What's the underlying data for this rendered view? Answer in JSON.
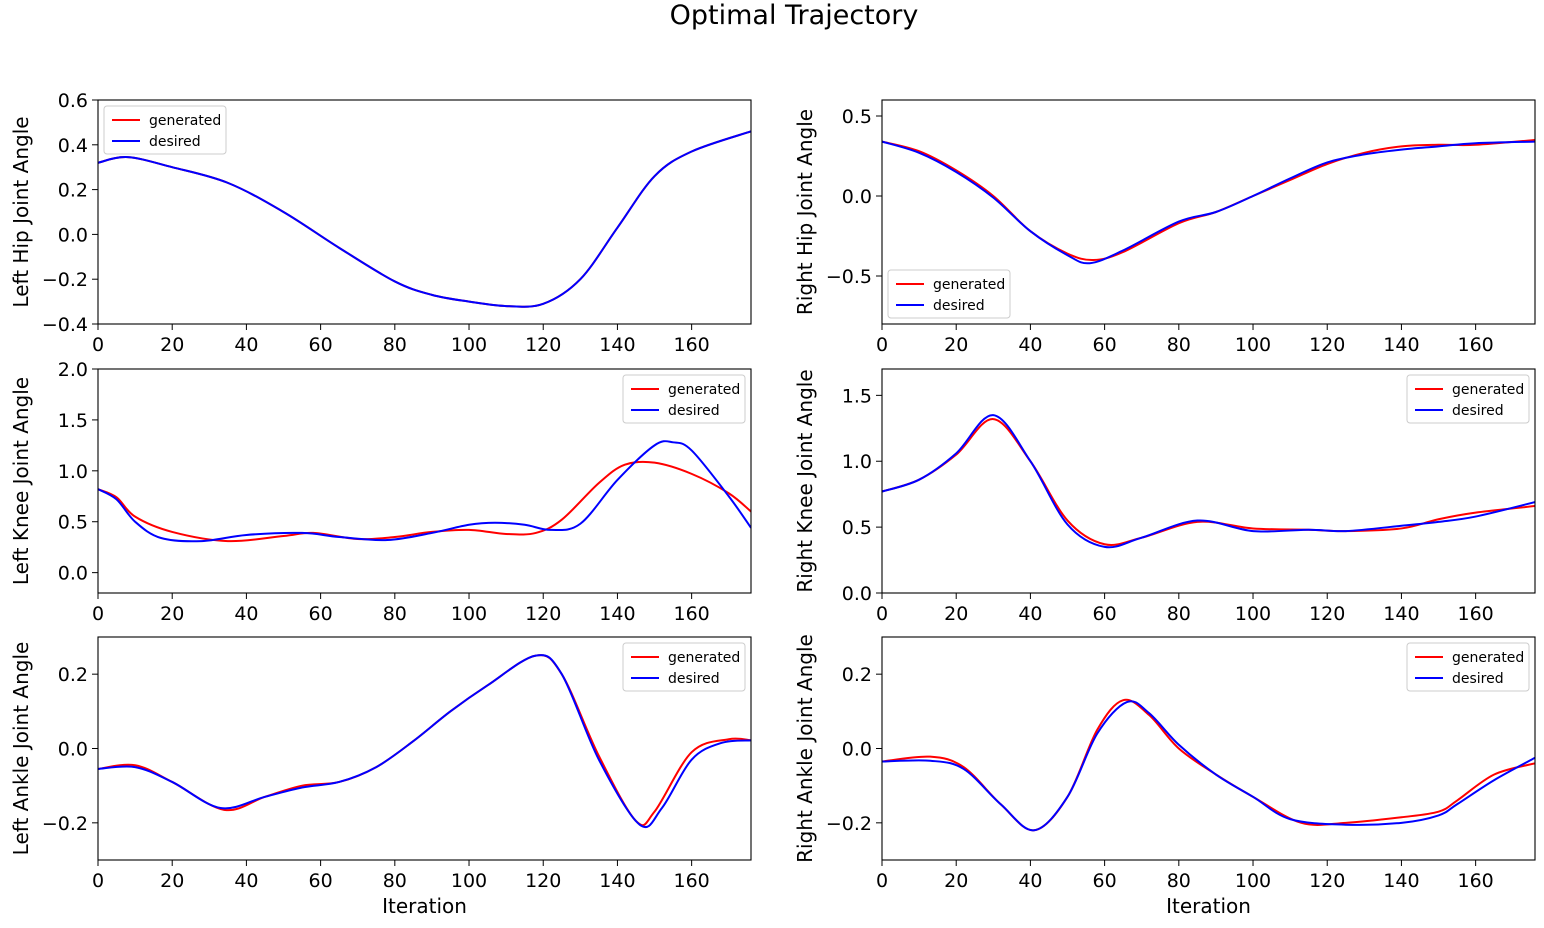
{
  "title": "Optimal Trajectory",
  "colors": {
    "generated": "#ff0000",
    "desired": "#0000ff"
  },
  "chart_data": [
    {
      "type": "line",
      "ylabel": "Left Hip Joint Angle",
      "xlabel": "",
      "xlim": [
        0,
        176
      ],
      "ylim": [
        -0.4,
        0.6
      ],
      "xticks": [
        0,
        20,
        40,
        60,
        80,
        100,
        120,
        140,
        160
      ],
      "xtick_labels": [
        "0",
        "20",
        "40",
        "60",
        "80",
        "100",
        "120",
        "140",
        "160"
      ],
      "yticks": [
        -0.4,
        -0.2,
        0.0,
        0.2,
        0.4,
        0.6
      ],
      "ytick_labels": [
        "−0.4",
        "−0.2",
        "0.0",
        "0.2",
        "0.4",
        "0.6"
      ],
      "legend": "upper-left",
      "series": [
        {
          "name": "generated",
          "x": [
            0,
            8,
            20,
            35,
            50,
            65,
            80,
            90,
            100,
            110,
            120,
            130,
            140,
            150,
            160,
            176
          ],
          "y": [
            0.32,
            0.345,
            0.3,
            0.23,
            0.1,
            -0.06,
            -0.21,
            -0.27,
            -0.3,
            -0.32,
            -0.31,
            -0.2,
            0.03,
            0.26,
            0.37,
            0.46
          ]
        },
        {
          "name": "desired",
          "x": [
            0,
            8,
            20,
            35,
            50,
            65,
            80,
            90,
            100,
            110,
            120,
            130,
            140,
            150,
            160,
            176
          ],
          "y": [
            0.32,
            0.345,
            0.3,
            0.23,
            0.1,
            -0.06,
            -0.21,
            -0.27,
            -0.3,
            -0.32,
            -0.31,
            -0.2,
            0.03,
            0.26,
            0.37,
            0.46
          ]
        }
      ]
    },
    {
      "type": "line",
      "ylabel": "Right Hip Joint Angle",
      "xlabel": "",
      "xlim": [
        0,
        176
      ],
      "ylim": [
        -0.8,
        0.6
      ],
      "xticks": [
        0,
        20,
        40,
        60,
        80,
        100,
        120,
        140,
        160
      ],
      "xtick_labels": [
        "0",
        "20",
        "40",
        "60",
        "80",
        "100",
        "120",
        "140",
        "160"
      ],
      "yticks": [
        -0.5,
        0.0,
        0.5
      ],
      "ytick_labels": [
        "−0.5",
        "0.0",
        "0.5"
      ],
      "legend": "lower-left",
      "series": [
        {
          "name": "generated",
          "x": [
            0,
            10,
            20,
            30,
            40,
            50,
            57,
            65,
            80,
            90,
            100,
            110,
            120,
            130,
            140,
            150,
            160,
            176
          ],
          "y": [
            0.34,
            0.28,
            0.16,
            0.0,
            -0.22,
            -0.36,
            -0.4,
            -0.35,
            -0.17,
            -0.1,
            0.0,
            0.1,
            0.2,
            0.27,
            0.31,
            0.32,
            0.32,
            0.35
          ]
        },
        {
          "name": "desired",
          "x": [
            0,
            10,
            20,
            30,
            40,
            50,
            56,
            65,
            80,
            90,
            100,
            110,
            120,
            130,
            140,
            150,
            160,
            176
          ],
          "y": [
            0.34,
            0.27,
            0.15,
            -0.01,
            -0.22,
            -0.37,
            -0.42,
            -0.34,
            -0.16,
            -0.1,
            0.0,
            0.11,
            0.21,
            0.26,
            0.29,
            0.31,
            0.33,
            0.34
          ]
        }
      ]
    },
    {
      "type": "line",
      "ylabel": "Left Knee Joint Angle",
      "xlabel": "",
      "xlim": [
        0,
        176
      ],
      "ylim": [
        -0.2,
        2.0
      ],
      "xticks": [
        0,
        20,
        40,
        60,
        80,
        100,
        120,
        140,
        160
      ],
      "xtick_labels": [
        "0",
        "20",
        "40",
        "60",
        "80",
        "100",
        "120",
        "140",
        "160"
      ],
      "yticks": [
        0.0,
        0.5,
        1.0,
        1.5,
        2.0
      ],
      "ytick_labels": [
        "0.0",
        "0.5",
        "1.0",
        "1.5",
        "2.0"
      ],
      "legend": "upper-right",
      "series": [
        {
          "name": "generated",
          "x": [
            0,
            5,
            10,
            20,
            35,
            50,
            58,
            70,
            80,
            90,
            100,
            110,
            118,
            125,
            135,
            142,
            150,
            160,
            170,
            176
          ],
          "y": [
            0.82,
            0.74,
            0.55,
            0.4,
            0.31,
            0.36,
            0.39,
            0.33,
            0.35,
            0.4,
            0.42,
            0.38,
            0.39,
            0.52,
            0.88,
            1.06,
            1.08,
            0.97,
            0.78,
            0.6
          ]
        },
        {
          "name": "desired",
          "x": [
            0,
            5,
            10,
            17,
            28,
            40,
            55,
            65,
            78,
            90,
            100,
            107,
            115,
            122,
            130,
            140,
            150,
            155,
            160,
            170,
            176
          ],
          "y": [
            0.82,
            0.72,
            0.5,
            0.34,
            0.31,
            0.37,
            0.39,
            0.35,
            0.32,
            0.39,
            0.47,
            0.49,
            0.47,
            0.42,
            0.48,
            0.91,
            1.25,
            1.28,
            1.2,
            0.75,
            0.44
          ]
        }
      ]
    },
    {
      "type": "line",
      "ylabel": "Right Knee Joint Angle",
      "xlabel": "",
      "xlim": [
        0,
        176
      ],
      "ylim": [
        0.0,
        1.7
      ],
      "xticks": [
        0,
        20,
        40,
        60,
        80,
        100,
        120,
        140,
        160
      ],
      "xtick_labels": [
        "0",
        "20",
        "40",
        "60",
        "80",
        "100",
        "120",
        "140",
        "160"
      ],
      "yticks": [
        0.0,
        0.5,
        1.0,
        1.5
      ],
      "ytick_labels": [
        "0.0",
        "0.5",
        "1.0",
        "1.5"
      ],
      "legend": "upper-right",
      "series": [
        {
          "name": "generated",
          "x": [
            0,
            10,
            20,
            30,
            40,
            50,
            60,
            70,
            85,
            100,
            115,
            125,
            140,
            150,
            160,
            176
          ],
          "y": [
            0.77,
            0.86,
            1.05,
            1.32,
            1.0,
            0.55,
            0.37,
            0.42,
            0.54,
            0.49,
            0.48,
            0.47,
            0.49,
            0.56,
            0.61,
            0.66
          ]
        },
        {
          "name": "desired",
          "x": [
            0,
            10,
            20,
            30,
            40,
            50,
            60,
            70,
            85,
            100,
            115,
            125,
            140,
            150,
            160,
            176
          ],
          "y": [
            0.77,
            0.86,
            1.06,
            1.35,
            1.0,
            0.52,
            0.35,
            0.42,
            0.55,
            0.47,
            0.48,
            0.47,
            0.51,
            0.54,
            0.58,
            0.69
          ]
        }
      ]
    },
    {
      "type": "line",
      "ylabel": "Left Ankle Joint Angle",
      "xlabel": "Iteration",
      "xlim": [
        0,
        176
      ],
      "ylim": [
        -0.3,
        0.3
      ],
      "xticks": [
        0,
        20,
        40,
        60,
        80,
        100,
        120,
        140,
        160
      ],
      "xtick_labels": [
        "0",
        "20",
        "40",
        "60",
        "80",
        "100",
        "120",
        "140",
        "160"
      ],
      "yticks": [
        -0.2,
        0.0,
        0.2
      ],
      "ytick_labels": [
        "−0.2",
        "0.0",
        "0.2"
      ],
      "legend": "upper-right",
      "series": [
        {
          "name": "generated",
          "x": [
            0,
            10,
            20,
            34,
            45,
            55,
            65,
            75,
            85,
            95,
            105,
            118,
            125,
            135,
            145,
            150,
            160,
            170,
            176
          ],
          "y": [
            -0.055,
            -0.045,
            -0.09,
            -0.165,
            -0.13,
            -0.1,
            -0.09,
            -0.05,
            0.02,
            0.1,
            0.17,
            0.25,
            0.2,
            -0.02,
            -0.195,
            -0.17,
            -0.01,
            0.025,
            0.022
          ]
        },
        {
          "name": "desired",
          "x": [
            0,
            10,
            20,
            33,
            45,
            55,
            65,
            75,
            85,
            95,
            105,
            118,
            125,
            135,
            146,
            152,
            160,
            168,
            176
          ],
          "y": [
            -0.055,
            -0.05,
            -0.09,
            -0.16,
            -0.13,
            -0.105,
            -0.09,
            -0.05,
            0.02,
            0.1,
            0.17,
            0.25,
            0.2,
            -0.03,
            -0.205,
            -0.16,
            -0.03,
            0.015,
            0.022
          ]
        }
      ]
    },
    {
      "type": "line",
      "ylabel": "Right Ankle Joint Angle",
      "xlabel": "Iteration",
      "xlim": [
        0,
        176
      ],
      "ylim": [
        -0.3,
        0.3
      ],
      "xticks": [
        0,
        20,
        40,
        60,
        80,
        100,
        120,
        140,
        160
      ],
      "xtick_labels": [
        "0",
        "20",
        "40",
        "60",
        "80",
        "100",
        "120",
        "140",
        "160"
      ],
      "yticks": [
        -0.2,
        0.0,
        0.2
      ],
      "ytick_labels": [
        "−0.2",
        "0.0",
        "0.2"
      ],
      "legend": "upper-right",
      "series": [
        {
          "name": "generated",
          "x": [
            0,
            13,
            22,
            32,
            41,
            50,
            58,
            65,
            72,
            80,
            90,
            100,
            113,
            125,
            140,
            150,
            155,
            165,
            176
          ],
          "y": [
            -0.035,
            -0.022,
            -0.05,
            -0.15,
            -0.22,
            -0.13,
            0.05,
            0.13,
            0.09,
            0.0,
            -0.07,
            -0.13,
            -0.2,
            -0.2,
            -0.185,
            -0.17,
            -0.14,
            -0.07,
            -0.04
          ]
        },
        {
          "name": "desired",
          "x": [
            0,
            13,
            22,
            32,
            41,
            50,
            58,
            66,
            72,
            80,
            90,
            100,
            110,
            125,
            140,
            150,
            155,
            165,
            176
          ],
          "y": [
            -0.035,
            -0.033,
            -0.055,
            -0.15,
            -0.22,
            -0.13,
            0.04,
            0.125,
            0.095,
            0.01,
            -0.07,
            -0.13,
            -0.19,
            -0.205,
            -0.2,
            -0.18,
            -0.15,
            -0.085,
            -0.025
          ]
        }
      ]
    }
  ]
}
